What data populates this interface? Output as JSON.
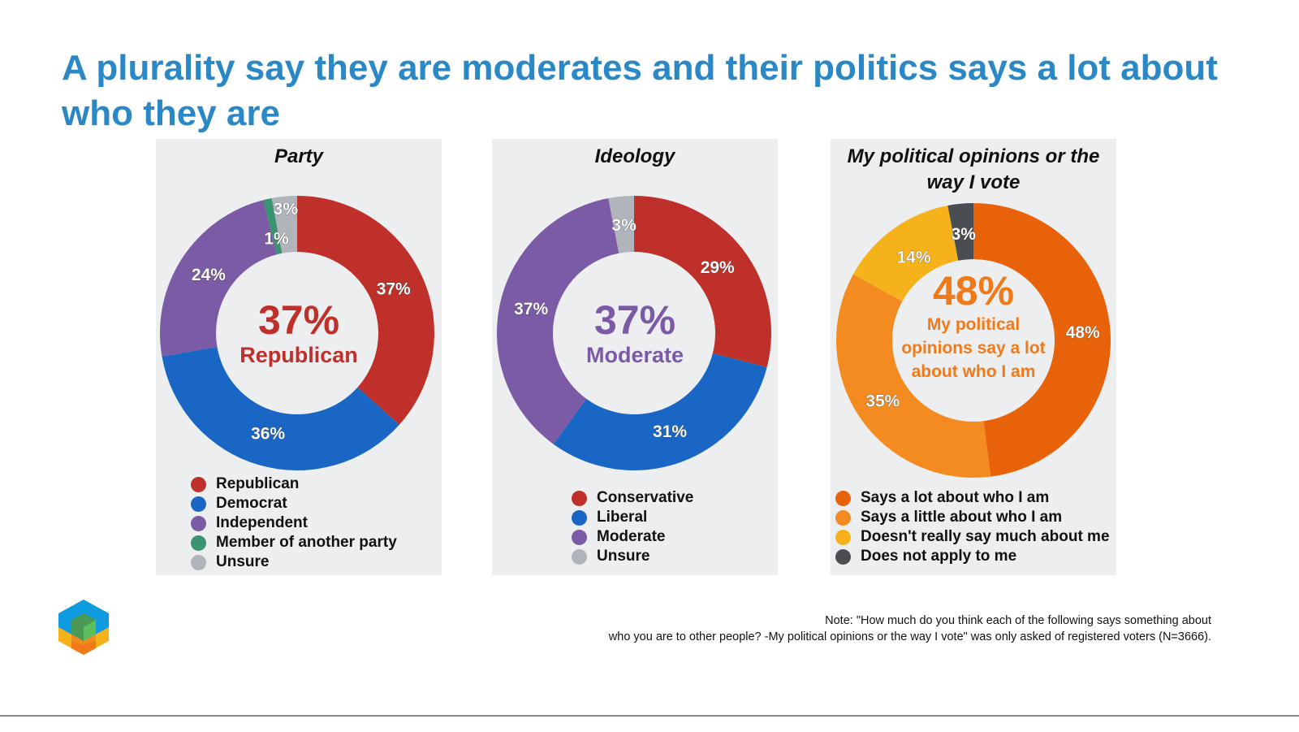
{
  "title": "A plurality say they are moderates and their politics says a lot about who they are",
  "note": {
    "line1": "Note: \"How much do you think each of the following says something about",
    "line2": "who you are to other people? -My political opinions or the way I vote\" was only asked of registered voters (N=3666)."
  },
  "chart_data": [
    {
      "type": "pie",
      "donut": true,
      "title": "Party",
      "center_value": "37%",
      "center_label": "Republican",
      "center_color": "#c0302a",
      "categories": [
        "Republican",
        "Democrat",
        "Independent",
        "Member of another party",
        "Unsure"
      ],
      "values": [
        37,
        36,
        24,
        1,
        3
      ],
      "data_labels": [
        "37%",
        "36%",
        "24%",
        "1%",
        "3%"
      ],
      "colors": [
        "#c0302a",
        "#1a66c4",
        "#7b5aa6",
        "#3a9470",
        "#b0b5bb"
      ],
      "legend": "bottom"
    },
    {
      "type": "pie",
      "donut": true,
      "title": "Ideology",
      "center_value": "37%",
      "center_label": "Moderate",
      "center_color": "#7b5aa6",
      "categories": [
        "Conservative",
        "Liberal",
        "Moderate",
        "Unsure"
      ],
      "values": [
        29,
        31,
        37,
        3
      ],
      "data_labels": [
        "29%",
        "31%",
        "37%",
        "3%"
      ],
      "colors": [
        "#c0302a",
        "#1a66c4",
        "#7b5aa6",
        "#b0b5bb"
      ],
      "legend": "bottom"
    },
    {
      "type": "pie",
      "donut": true,
      "title": "My political opinions or the way I vote",
      "center_value": "48%",
      "center_label": "My political opinions say a lot about who I am",
      "center_color": "#f07a1a",
      "categories": [
        "Says a lot about who I am",
        "Says a little about who I am",
        "Doesn't really say much about me",
        "Does not apply to me"
      ],
      "values": [
        48,
        35,
        14,
        3
      ],
      "data_labels": [
        "48%",
        "35%",
        "14%",
        "3%"
      ],
      "colors": [
        "#e8620a",
        "#f38b20",
        "#f5b21a",
        "#4a4d52"
      ],
      "legend": "bottom"
    }
  ]
}
